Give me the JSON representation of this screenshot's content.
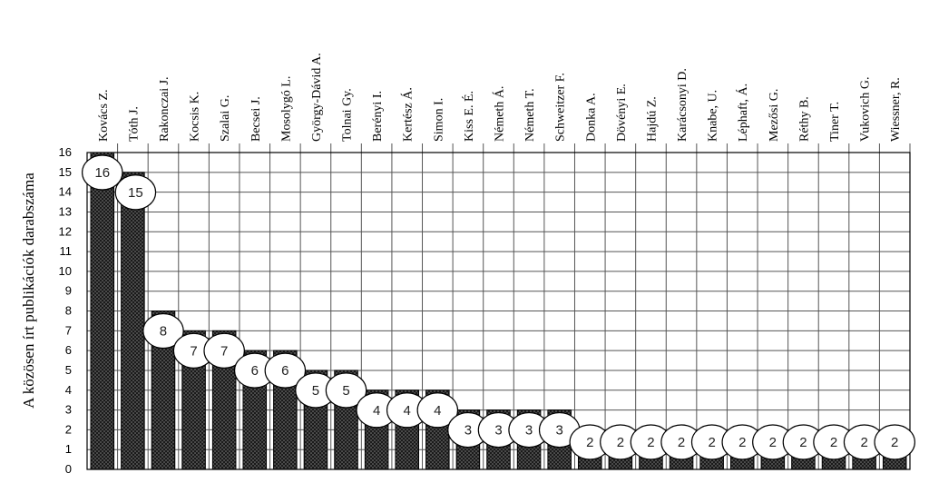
{
  "chart_data": {
    "type": "bar",
    "title": "",
    "xlabel": "",
    "ylabel": "A közösen írt publikációk darabszáma",
    "ylim": [
      0,
      16
    ],
    "yticks": [
      "0",
      "1",
      "2",
      "3",
      "4",
      "5",
      "6",
      "7",
      "8",
      "9",
      "10",
      "11",
      "12",
      "13",
      "14",
      "15",
      "16"
    ],
    "grid": true,
    "legend": "none",
    "categories": [
      "Kovács Z.",
      "Tóth J.",
      "Rakonczai J.",
      "Kocsis K.",
      "Szalai G.",
      "Becsei J.",
      "Mosolygó L.",
      "György-Dávid A.",
      "Tolnai Gy.",
      "Berényi I.",
      "Kertész Á.",
      "Simon I.",
      "Kiss E. É.",
      "Németh Á.",
      "Németh T.",
      "Schweitzer F.",
      "Donka A.",
      "Dövényi E.",
      "Hajdú Z.",
      "Karácsonyi D.",
      "Knabe, U.",
      "Léphaft, Á.",
      "Mezősi G.",
      "Réthy B.",
      "Tiner T.",
      "Vukovich G.",
      "Wiessner, R."
    ],
    "values": [
      16,
      15,
      8,
      7,
      7,
      6,
      6,
      5,
      5,
      4,
      4,
      4,
      3,
      3,
      3,
      3,
      2,
      2,
      2,
      2,
      2,
      2,
      2,
      2,
      2,
      2,
      2
    ],
    "data_labels": [
      "16",
      "15",
      "8",
      "7",
      "7",
      "6",
      "6",
      "5",
      "5",
      "4",
      "4",
      "4",
      "3",
      "3",
      "3",
      "3",
      "2",
      "2",
      "2",
      "2",
      "2",
      "2",
      "2",
      "2",
      "2",
      "2",
      "2"
    ],
    "colors": {
      "bar_fill": "#1a1a1a",
      "bar_dots": "#8a8a8a",
      "grid": "#555555",
      "label_bubble": "#ffffff"
    }
  }
}
